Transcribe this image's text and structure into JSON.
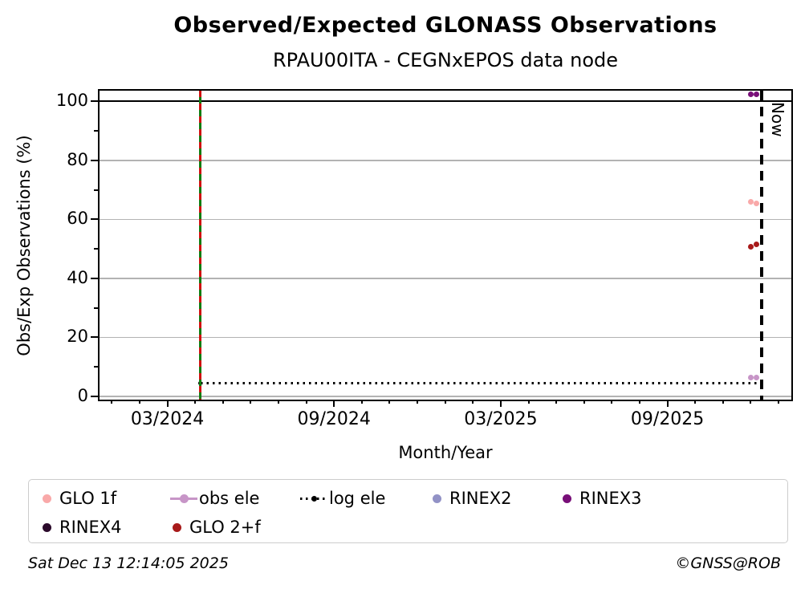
{
  "title": "Observed/Expected GLONASS Observations",
  "subtitle": "RPAU00ITA - CEGNxEPOS data node",
  "footer": {
    "timestamp": "Sat Dec 13 12:14:05 2025",
    "copyright": "©GNSS@ROB"
  },
  "chart_data": {
    "type": "scatter",
    "title": "Observed/Expected GLONASS Observations",
    "subtitle": "RPAU00ITA - CEGNxEPOS data node",
    "xlabel": "Month/Year",
    "ylabel": "Obs/Exp Observations (%)",
    "x_range": [
      "2023-12-18",
      "2026-01-15"
    ],
    "y_range": [
      -1.1,
      103.6
    ],
    "grid": "on",
    "grid_color": "#b3b3b3",
    "x_major_ticks": [
      {
        "date": "2024-03-01",
        "label": "03/2024"
      },
      {
        "date": "2024-09-01",
        "label": "09/2024"
      },
      {
        "date": "2025-03-01",
        "label": "03/2025"
      },
      {
        "date": "2025-09-01",
        "label": "09/2025"
      }
    ],
    "x_minor_ticks": [
      "2024-01-01",
      "2024-02-01",
      "2024-04-01",
      "2024-05-01",
      "2024-06-01",
      "2024-07-01",
      "2024-08-01",
      "2024-10-01",
      "2024-11-01",
      "2024-12-01",
      "2025-01-01",
      "2025-02-01",
      "2025-04-01",
      "2025-05-01",
      "2025-06-01",
      "2025-07-01",
      "2025-08-01",
      "2025-10-01",
      "2025-11-01",
      "2025-12-01",
      "2026-01-01"
    ],
    "y_major_ticks": [
      0,
      20,
      40,
      60,
      80,
      100
    ],
    "y_minor_ticks": [
      10,
      30,
      50,
      70,
      90
    ],
    "grid_values": [
      0,
      20,
      40,
      60,
      80
    ],
    "hline_100": 100,
    "series": [
      {
        "name": "GLO 1f",
        "color": "#f9a9a9",
        "points": [
          {
            "date": "2025-12-01",
            "value": 66.0
          },
          {
            "date": "2025-12-07",
            "value": 65.4
          }
        ]
      },
      {
        "name": "GLO 2+f",
        "color": "#a81a1a",
        "points": [
          {
            "date": "2025-12-01",
            "value": 50.7
          },
          {
            "date": "2025-12-07",
            "value": 51.4
          }
        ]
      },
      {
        "name": "obs ele",
        "color": "#c795c7",
        "points": [
          {
            "date": "2025-12-01",
            "value": 6.5
          },
          {
            "date": "2025-12-07",
            "value": 6.5
          }
        ]
      },
      {
        "name": "RINEX2",
        "color": "#9292c6",
        "points": []
      },
      {
        "name": "RINEX3",
        "color": "#780f78",
        "points": [
          {
            "date": "2025-12-01",
            "value": 102.3
          },
          {
            "date": "2025-12-07",
            "value": 102.4
          }
        ]
      },
      {
        "name": "RINEX4",
        "color": "#2b0a2b",
        "points": []
      }
    ],
    "log_ele_line": {
      "name": "log ele",
      "color": "#000000",
      "style": "dotted",
      "value": 4.5,
      "start": "2024-04-07",
      "end": "2025-12-13",
      "marker_at_start": true
    },
    "event_line": {
      "date": "2024-04-07",
      "color": "#107d10",
      "dash_color": "#d01010"
    },
    "now_line": {
      "date": "2025-12-13",
      "label": "Now",
      "style": "dashed",
      "color": "#000000"
    }
  },
  "legend": {
    "items": [
      {
        "label": "GLO 1f",
        "marker": "dot",
        "color": "#f9a9a9"
      },
      {
        "label": "obs ele",
        "marker": "line-dot",
        "color": "#c795c7"
      },
      {
        "label": "log ele",
        "marker": "dotted-line-dot",
        "color": "#000000"
      },
      {
        "label": "RINEX2",
        "marker": "dot",
        "color": "#9292c6"
      },
      {
        "label": "RINEX3",
        "marker": "dot",
        "color": "#780f78"
      },
      {
        "label": "RINEX4",
        "marker": "dot",
        "color": "#2b0a2b"
      },
      {
        "label": "GLO 2+f",
        "marker": "dot",
        "color": "#a81a1a"
      }
    ]
  }
}
